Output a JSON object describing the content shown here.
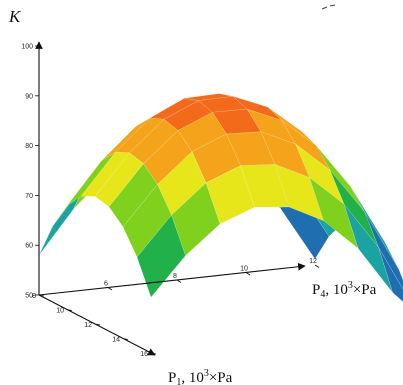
{
  "chart_data": {
    "type": "surface",
    "title": "",
    "zlabel": "K",
    "xlabel_prefix": "P",
    "xlabel_sub": "4",
    "xlabel_suffix": ", 10",
    "xlabel_sup": "3",
    "xlabel_unit": "×Pa",
    "ylabel_prefix": "P",
    "ylabel_sub": "1",
    "ylabel_suffix": ", 10",
    "ylabel_sup": "3",
    "ylabel_unit": "×Pa",
    "zlim": [
      50,
      100
    ],
    "z_ticks": [
      "50",
      "60",
      "70",
      "80",
      "90",
      "100"
    ],
    "x_range": [
      4,
      12
    ],
    "x_ticks": [
      "6",
      "8",
      "10",
      "12"
    ],
    "y_range": [
      8,
      16
    ],
    "y_ticks": [
      "8",
      "10",
      "12",
      "14",
      "16"
    ],
    "grid": false,
    "colormap": [
      "#0b1f8c",
      "#1f6fb0",
      "#1aa3a0",
      "#22b04a",
      "#7fd11e",
      "#e6e61a",
      "#f5a31a",
      "#f26a1a",
      "#ee1111"
    ],
    "surface": {
      "x": [
        4,
        5,
        6,
        7,
        8,
        9,
        10,
        11,
        12
      ],
      "y": [
        8,
        9,
        10,
        11,
        12,
        13,
        14,
        15,
        16
      ],
      "z": [
        [
          58.0,
          66.5,
          73.0,
          76.6,
          77.3,
          75.1,
          70.1,
          62.1,
          51.2
        ],
        [
          65.4,
          73.8,
          80.2,
          83.7,
          84.2,
          81.8,
          76.6,
          68.4,
          57.2
        ],
        [
          70.8,
          79.1,
          85.3,
          88.6,
          89.0,
          86.5,
          81.1,
          72.7,
          61.3
        ],
        [
          74.2,
          82.3,
          88.4,
          91.6,
          91.8,
          89.1,
          83.6,
          74.9,
          63.3
        ],
        [
          75.6,
          83.6,
          89.6,
          92.6,
          92.7,
          89.8,
          84.1,
          75.3,
          63.5
        ],
        [
          75.0,
          82.9,
          88.8,
          91.7,
          91.6,
          88.6,
          82.8,
          73.8,
          61.8
        ],
        [
          72.4,
          80.2,
          86.0,
          88.8,
          88.5,
          85.3,
          79.3,
          70.2,
          57.8
        ],
        [
          67.8,
          75.5,
          81.2,
          83.9,
          83.4,
          80.0,
          73.9,
          64.5,
          51.9
        ],
        [
          61.2,
          68.8,
          74.4,
          77.0,
          76.3,
          72.8,
          66.5,
          56.9,
          50.0
        ]
      ]
    }
  }
}
